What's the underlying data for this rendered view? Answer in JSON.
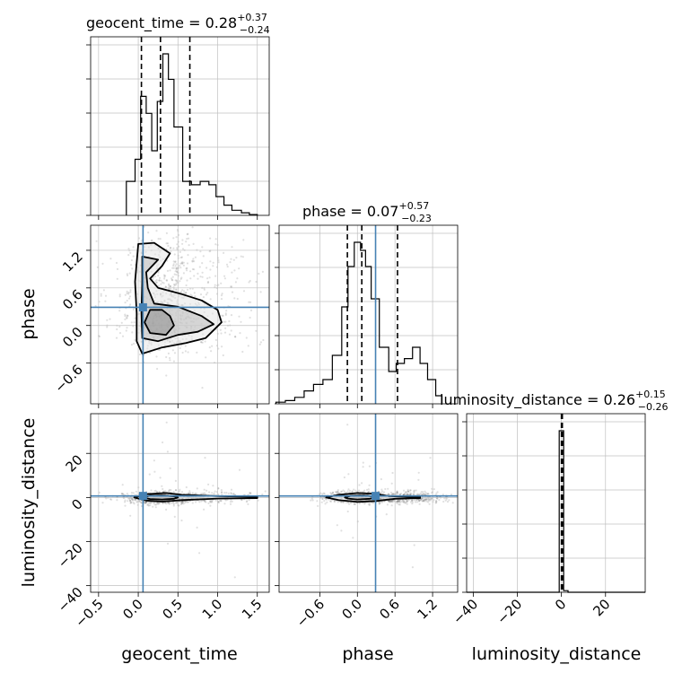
{
  "chart_data": {
    "type": "corner",
    "parameters": [
      "geocent_time",
      "phase",
      "luminosity_distance"
    ],
    "truths": [
      0.06,
      0.29,
      0.7
    ],
    "colors": {
      "truth": "#4682b4",
      "hist": "#000000",
      "grid": "#c0c0c0",
      "points": "#000000"
    },
    "titles": [
      {
        "label": "geocent_time",
        "median": "0.28",
        "plus": "+0.37",
        "minus": "−0.24"
      },
      {
        "label": "phase",
        "median": "0.07",
        "plus": "+0.57",
        "minus": "−0.23"
      },
      {
        "label": "luminosity_distance",
        "median": "0.26",
        "plus": "+0.15",
        "minus": "−0.26"
      }
    ],
    "axis_labels": [
      "geocent_time",
      "phase",
      "luminosity_distance"
    ],
    "ranges": [
      [
        -0.6,
        1.65
      ],
      [
        -1.25,
        1.6
      ],
      [
        -43,
        38
      ]
    ],
    "ticks": {
      "geocent_time": {
        "values": [
          -0.5,
          0.0,
          0.5,
          1.0,
          1.5
        ],
        "labels": [
          "−0.5",
          "0.0",
          "0.5",
          "1.0",
          "1.5"
        ]
      },
      "phase": {
        "values": [
          -0.6,
          0.0,
          0.6,
          1.2
        ],
        "labels": [
          "−0.6",
          "0.0",
          "0.6",
          "1.2"
        ]
      },
      "luminosity_distance": {
        "values": [
          -40,
          -20,
          0,
          20
        ],
        "labels": [
          "−40",
          "−20",
          "0",
          "20"
        ]
      }
    },
    "quantiles": {
      "geocent_time": [
        0.04,
        0.28,
        0.65
      ],
      "phase": [
        -0.16,
        0.07,
        0.64
      ],
      "luminosity_distance": [
        0.0,
        0.26,
        0.41
      ]
    },
    "histograms": {
      "geocent_time": {
        "edges": [
          -0.15,
          -0.04,
          0.03,
          0.1,
          0.17,
          0.24,
          0.31,
          0.38,
          0.45,
          0.56,
          0.67,
          0.78,
          0.89,
          0.98,
          1.08,
          1.18,
          1.3,
          1.4,
          1.5
        ],
        "counts": [
          0.2,
          0.33,
          0.7,
          0.6,
          0.38,
          0.67,
          0.95,
          0.8,
          0.52,
          0.2,
          0.18,
          0.2,
          0.18,
          0.11,
          0.06,
          0.03,
          0.015,
          0.005
        ]
      },
      "phase": {
        "edges": [
          -1.3,
          -1.15,
          -1.0,
          -0.85,
          -0.7,
          -0.55,
          -0.4,
          -0.25,
          -0.15,
          -0.05,
          0.05,
          0.13,
          0.22,
          0.35,
          0.5,
          0.62,
          0.75,
          0.88,
          1.0,
          1.12,
          1.25,
          1.35
        ],
        "counts": [
          0.01,
          0.02,
          0.04,
          0.08,
          0.12,
          0.15,
          0.3,
          0.6,
          0.85,
          1.0,
          0.95,
          0.85,
          0.65,
          0.35,
          0.2,
          0.25,
          0.28,
          0.35,
          0.25,
          0.15,
          0.05
        ]
      },
      "luminosity_distance": {
        "edges": [
          -43,
          -1,
          1,
          3,
          38
        ],
        "counts": [
          0.0,
          1.0,
          0.01,
          0.0
        ]
      }
    },
    "contours": {
      "phase_vs_geocent_time": [
        [
          [
            0.0,
            1.3
          ],
          [
            0.2,
            1.32
          ],
          [
            0.4,
            1.15
          ],
          [
            0.3,
            0.95
          ],
          [
            0.15,
            0.75
          ],
          [
            0.25,
            0.6
          ],
          [
            0.55,
            0.5
          ],
          [
            0.8,
            0.4
          ],
          [
            1.0,
            0.25
          ],
          [
            1.05,
            0.05
          ],
          [
            0.85,
            -0.2
          ],
          [
            0.6,
            -0.28
          ],
          [
            0.3,
            -0.35
          ],
          [
            0.05,
            -0.45
          ],
          [
            -0.02,
            -0.25
          ],
          [
            -0.02,
            0.2
          ],
          [
            -0.04,
            0.7
          ],
          [
            0.0,
            1.3
          ]
        ],
        [
          [
            0.05,
            1.1
          ],
          [
            0.25,
            1.05
          ],
          [
            0.1,
            0.85
          ],
          [
            0.12,
            0.6
          ],
          [
            0.2,
            0.35
          ],
          [
            0.5,
            0.3
          ],
          [
            0.8,
            0.15
          ],
          [
            0.95,
            0.02
          ],
          [
            0.75,
            -0.1
          ],
          [
            0.5,
            -0.15
          ],
          [
            0.25,
            -0.25
          ],
          [
            0.05,
            -0.2
          ],
          [
            0.04,
            0.2
          ],
          [
            0.05,
            0.7
          ],
          [
            0.05,
            1.1
          ]
        ],
        [
          [
            0.15,
            0.25
          ],
          [
            0.3,
            0.25
          ],
          [
            0.4,
            0.15
          ],
          [
            0.45,
            0.0
          ],
          [
            0.35,
            -0.15
          ],
          [
            0.15,
            -0.12
          ],
          [
            0.08,
            0.05
          ],
          [
            0.15,
            0.25
          ]
        ]
      ],
      "luminosity_distance_vs_geocent_time": [
        [
          [
            -0.05,
            0.0
          ],
          [
            0.1,
            1.5
          ],
          [
            0.35,
            2.0
          ],
          [
            0.55,
            1.2
          ],
          [
            1.0,
            0.6
          ],
          [
            1.5,
            0.3
          ],
          [
            1.5,
            -0.3
          ],
          [
            1.0,
            -0.5
          ],
          [
            0.55,
            -1.2
          ],
          [
            0.3,
            -1.9
          ],
          [
            0.1,
            -1.4
          ],
          [
            -0.05,
            0.0
          ]
        ],
        [
          [
            0.05,
            0.0
          ],
          [
            0.15,
            0.8
          ],
          [
            0.3,
            0.9
          ],
          [
            0.45,
            0.5
          ],
          [
            0.5,
            0.0
          ],
          [
            0.45,
            -0.6
          ],
          [
            0.3,
            -0.9
          ],
          [
            0.15,
            -0.7
          ],
          [
            0.05,
            0.0
          ]
        ]
      ],
      "luminosity_distance_vs_phase": [
        [
          [
            -0.5,
            0.0
          ],
          [
            -0.3,
            1.2
          ],
          [
            0.0,
            2.0
          ],
          [
            0.3,
            1.6
          ],
          [
            0.5,
            0.6
          ],
          [
            0.8,
            0.3
          ],
          [
            1.0,
            0.3
          ],
          [
            1.0,
            -0.3
          ],
          [
            0.6,
            -0.6
          ],
          [
            0.3,
            -1.6
          ],
          [
            0.0,
            -2.0
          ],
          [
            -0.3,
            -1.2
          ],
          [
            -0.5,
            0.0
          ]
        ],
        [
          [
            -0.2,
            0.0
          ],
          [
            -0.1,
            0.8
          ],
          [
            0.1,
            0.9
          ],
          [
            0.25,
            0.5
          ],
          [
            0.3,
            0.0
          ],
          [
            0.2,
            -0.6
          ],
          [
            0.0,
            -0.9
          ],
          [
            -0.15,
            -0.5
          ],
          [
            -0.2,
            0.0
          ]
        ]
      ]
    },
    "grid": true
  }
}
